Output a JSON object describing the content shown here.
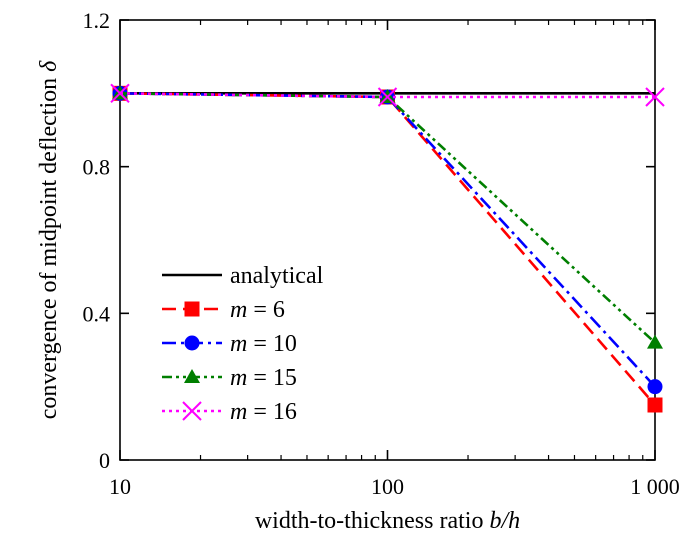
{
  "chart_data": {
    "type": "line",
    "x_scale": "log",
    "x": [
      10,
      100,
      1000
    ],
    "x_ticks": [
      {
        "value": 10,
        "label": "10"
      },
      {
        "value": 100,
        "label": "100"
      },
      {
        "value": 1000,
        "label": "1 000"
      }
    ],
    "y_ticks": [
      {
        "value": 0,
        "label": "0"
      },
      {
        "value": 0.4,
        "label": "0.4"
      },
      {
        "value": 0.8,
        "label": "0.8"
      },
      {
        "value": 1.2,
        "label": "1.2"
      }
    ],
    "xlim": [
      10,
      1000
    ],
    "ylim": [
      0,
      1.2
    ],
    "xlabel": {
      "text": "width-to-thickness ratio ",
      "var": "b/h"
    },
    "ylabel": {
      "text": "convergence of midpoint deflection ",
      "var": "δ"
    },
    "grid": false,
    "legend_position": "lower-left",
    "series": [
      {
        "name": "analytical",
        "var": "",
        "eq": "",
        "values": [
          1.0,
          1.0,
          1.0
        ],
        "color": "#000000",
        "dash": "solid",
        "marker": "none"
      },
      {
        "name": "m = 6",
        "var": "m",
        "eq": " = 6",
        "values": [
          1.0,
          0.99,
          0.15
        ],
        "color": "#ff0000",
        "dash": "dash",
        "marker": "square"
      },
      {
        "name": "m = 10",
        "var": "m",
        "eq": " = 10",
        "values": [
          1.0,
          0.99,
          0.2
        ],
        "color": "#0000ff",
        "dash": "dashdot",
        "marker": "circle"
      },
      {
        "name": "m = 15",
        "var": "m",
        "eq": " = 15",
        "values": [
          1.0,
          0.99,
          0.32
        ],
        "color": "#007f00",
        "dash": "dashdotdot",
        "marker": "triangle"
      },
      {
        "name": "m = 16",
        "var": "m",
        "eq": " = 16",
        "values": [
          1.0,
          0.99,
          0.99
        ],
        "color": "#ff00ff",
        "dash": "dot",
        "marker": "x"
      }
    ]
  }
}
